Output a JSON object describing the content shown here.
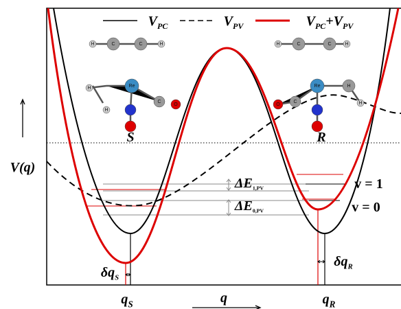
{
  "legend": [
    [
      [
        "V",
        "PC"
      ]
    ],
    [
      [
        "V",
        "PV"
      ]
    ],
    [
      [
        "V",
        "PC"
      ],
      [
        "+V",
        "PV"
      ]
    ]
  ],
  "axis_label": "V(q)",
  "x_axis": {
    "label": "q",
    "minima": [
      [
        [
          "q",
          "S"
        ]
      ],
      [
        [
          "q",
          "R"
        ]
      ]
    ]
  },
  "shifts": [
    [
      [
        "δq",
        "S"
      ]
    ],
    [
      [
        "δq",
        "R"
      ]
    ]
  ],
  "splittings": [
    [
      [
        "ΔE",
        "1,PV"
      ]
    ],
    [
      [
        "ΔE",
        "0,PV"
      ]
    ]
  ],
  "levels": [
    "v = 1",
    "v = 0"
  ],
  "enantiomers": [
    "S",
    "R"
  ],
  "atom_labels": [
    "H",
    "C",
    "C",
    "H",
    "Re",
    "C",
    "O",
    "H",
    "H",
    "H",
    "C",
    "C",
    "H",
    "Re",
    "C",
    "O",
    "H",
    "H"
  ]
}
